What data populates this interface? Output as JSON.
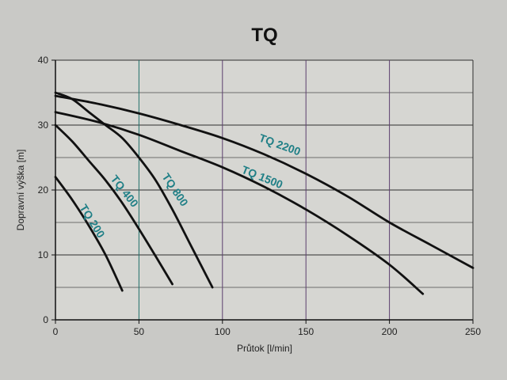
{
  "chart_data": {
    "type": "line",
    "title": "TQ",
    "xlabel": "Průtok [l/min]",
    "ylabel": "Dopravní výška [m]",
    "xlim": [
      0,
      250
    ],
    "ylim": [
      0,
      40
    ],
    "x_ticks": [
      "0",
      "50",
      "100",
      "150",
      "200",
      "250"
    ],
    "y_ticks": [
      "0",
      "10",
      "20",
      "30",
      "40"
    ],
    "grid": true,
    "series": [
      {
        "name": "TQ 200",
        "points": [
          [
            0,
            22
          ],
          [
            10,
            18.5
          ],
          [
            20,
            14.5
          ],
          [
            30,
            10
          ],
          [
            40,
            4.5
          ]
        ]
      },
      {
        "name": "TQ 400",
        "points": [
          [
            0,
            30
          ],
          [
            10,
            27.5
          ],
          [
            20,
            24.5
          ],
          [
            30,
            21.5
          ],
          [
            40,
            18
          ],
          [
            50,
            14
          ],
          [
            60,
            9.8
          ],
          [
            70,
            5.5
          ]
        ]
      },
      {
        "name": "TQ 800",
        "points": [
          [
            0,
            35
          ],
          [
            10,
            34
          ],
          [
            20,
            32
          ],
          [
            30,
            30
          ],
          [
            40,
            28
          ],
          [
            50,
            25
          ],
          [
            60,
            21.5
          ],
          [
            70,
            17
          ],
          [
            80,
            12
          ],
          [
            90,
            7
          ],
          [
            94,
            5
          ]
        ]
      },
      {
        "name": "TQ 1500",
        "points": [
          [
            0,
            32
          ],
          [
            25,
            30.5
          ],
          [
            50,
            28.5
          ],
          [
            75,
            26
          ],
          [
            100,
            23.5
          ],
          [
            125,
            20.5
          ],
          [
            150,
            17
          ],
          [
            175,
            13
          ],
          [
            200,
            8.5
          ],
          [
            220,
            4
          ]
        ]
      },
      {
        "name": "TQ 2200",
        "points": [
          [
            0,
            34.5
          ],
          [
            25,
            33.3
          ],
          [
            50,
            31.8
          ],
          [
            75,
            30
          ],
          [
            100,
            28
          ],
          [
            125,
            25.5
          ],
          [
            150,
            22.5
          ],
          [
            175,
            19
          ],
          [
            200,
            15
          ],
          [
            225,
            11.5
          ],
          [
            250,
            8
          ]
        ]
      }
    ]
  }
}
